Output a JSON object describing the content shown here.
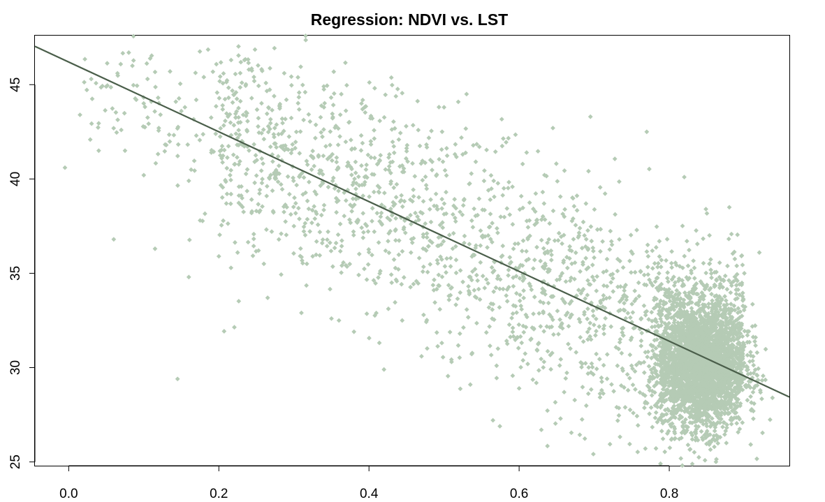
{
  "chart_data": {
    "type": "scatter",
    "title": "Regression: NDVI vs. LST",
    "xlabel": "",
    "ylabel": "",
    "xlim": [
      -0.045,
      0.96
    ],
    "ylim": [
      24.8,
      47.6
    ],
    "x_ticks": [
      0.0,
      0.2,
      0.4,
      0.6,
      0.8
    ],
    "x_tick_labels": [
      "0.0",
      "0.2",
      "0.4",
      "0.6",
      "0.8"
    ],
    "y_ticks": [
      25,
      30,
      35,
      40,
      45
    ],
    "y_tick_labels": [
      "25",
      "30",
      "35",
      "40",
      "45"
    ],
    "grid": false,
    "point_color": "#b5cbb5",
    "line_color": "#4a5e4a",
    "regression_line": {
      "intercept": 46.2,
      "slope": -18.5
    },
    "series": [
      {
        "points": [
          [
            -0.005,
            40.6
          ],
          [
            0.015,
            43.4
          ],
          [
            0.03,
            45.3
          ],
          [
            0.04,
            41.5
          ],
          [
            0.05,
            44.9
          ],
          [
            0.06,
            36.8
          ],
          [
            0.065,
            45.6
          ],
          [
            0.07,
            42.6
          ],
          [
            0.075,
            41.5
          ],
          [
            0.08,
            46.7
          ],
          [
            0.09,
            44.2
          ],
          [
            0.1,
            40.2
          ],
          [
            0.105,
            45.3
          ],
          [
            0.11,
            44.1
          ],
          [
            0.115,
            36.3
          ],
          [
            0.12,
            42.7
          ],
          [
            0.13,
            41.8
          ],
          [
            0.135,
            45.7
          ],
          [
            0.145,
            29.4
          ],
          [
            0.15,
            43.6
          ],
          [
            0.16,
            34.8
          ],
          [
            0.16,
            39.9
          ],
          [
            0.17,
            42.3
          ],
          [
            0.175,
            37.8
          ],
          [
            0.18,
            45.4
          ],
          [
            0.19,
            41.4
          ],
          [
            0.2,
            35.9
          ],
          [
            0.205,
            43.9
          ],
          [
            0.21,
            38.7
          ],
          [
            0.215,
            40.2
          ],
          [
            0.225,
            36.1
          ],
          [
            0.23,
            39.6
          ],
          [
            0.24,
            45.8
          ],
          [
            0.25,
            38.3
          ],
          [
            0.26,
            35.5
          ],
          [
            0.265,
            33.7
          ],
          [
            0.28,
            40.7
          ],
          [
            0.29,
            44.2
          ],
          [
            0.3,
            37.5
          ],
          [
            0.31,
            32.9
          ],
          [
            0.315,
            44.6
          ],
          [
            0.325,
            35.9
          ],
          [
            0.34,
            43.8
          ],
          [
            0.35,
            32.6
          ],
          [
            0.36,
            32.5
          ],
          [
            0.38,
            31.9
          ],
          [
            0.39,
            44.0
          ],
          [
            0.42,
            29.9
          ],
          [
            0.47,
            30.6
          ],
          [
            0.5,
            43.8
          ],
          [
            0.51,
            30.3
          ],
          [
            0.53,
            44.5
          ],
          [
            0.535,
            29.1
          ],
          [
            0.57,
            30.1
          ],
          [
            0.6,
            28.9
          ],
          [
            0.61,
            41.4
          ],
          [
            0.645,
            42.7
          ],
          [
            0.66,
            28.7
          ],
          [
            0.695,
            43.3
          ],
          [
            0.71,
            28.8
          ],
          [
            0.73,
            27.9
          ],
          [
            0.77,
            42.5
          ],
          [
            0.79,
            32.8
          ],
          [
            0.82,
            40.1
          ],
          [
            0.85,
            26.9
          ],
          [
            0.86,
            25.8
          ],
          [
            0.88,
            38.5
          ],
          [
            0.9,
            35.0
          ],
          [
            0.92,
            36.1
          ],
          [
            0.915,
            31.6
          ]
        ]
      }
    ]
  }
}
